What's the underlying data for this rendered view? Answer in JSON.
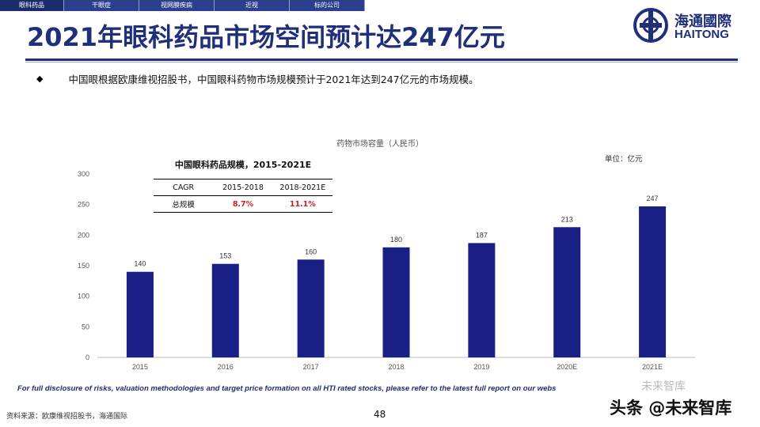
{
  "nav_tabs": [
    {
      "label": "眼科药品",
      "active": true
    },
    {
      "label": "干眼症",
      "active": false
    },
    {
      "label": "视网膜疾病",
      "active": false
    },
    {
      "label": "近视",
      "active": false
    },
    {
      "label": "标的公司",
      "active": false
    }
  ],
  "page_title": "2021年眼科药品市场空间预计达247亿元",
  "logo": {
    "cn": "海通國際",
    "en": "HAITONG"
  },
  "bullet": {
    "icon": "diamond-bullet-icon",
    "text": "中国眼根据欧康维视招股书，中国眼科药物市场规模预计于2021年达到247亿元的市场规模。"
  },
  "table": {
    "title": "中国眼科药品规模，2015-2021E",
    "headers": [
      "CAGR",
      "2015-2018",
      "2018-2021E"
    ],
    "rows": [
      [
        "总规模",
        "8.7%",
        "11.1%"
      ]
    ]
  },
  "unit_label": "单位：亿元",
  "chart_data": {
    "type": "bar",
    "title": "药物市场容量（人民币）",
    "categories": [
      "2015",
      "2016",
      "2017",
      "2018",
      "2019",
      "2020E",
      "2021E"
    ],
    "values": [
      140,
      153,
      160,
      180,
      187,
      213,
      247
    ],
    "ylim": [
      0,
      300
    ],
    "yticks": [
      0,
      50,
      100,
      150,
      200,
      250,
      300
    ],
    "bar_color": "#1a1f86",
    "grid": false
  },
  "footer": {
    "disclaimer": "For full disclosure of risks, valuation methodologies and target price formation on all HTI rated stocks, please refer to the latest full report on our webs",
    "source": "资料来源：欧康维视招股书，海通国际",
    "page_number": "48"
  },
  "watermark": {
    "text": "头条 @未来智库",
    "text2": "未来智库"
  },
  "colors": {
    "brand": "#1f2f7a",
    "tab_bg": "#2b3f8c",
    "accent_red": "#cc1f1f"
  }
}
